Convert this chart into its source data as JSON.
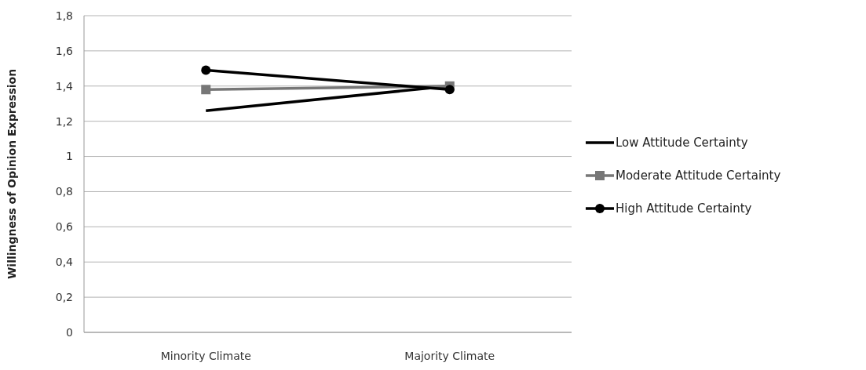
{
  "chart_data": {
    "type": "line",
    "ylabel": "Willingness of Opinion Expression",
    "categories": [
      "Minority Climate",
      "Majority Climate"
    ],
    "series": [
      {
        "name": "Low Attitude Certainty",
        "color": "#000000",
        "values": [
          1.26,
          1.4
        ],
        "marker": "none"
      },
      {
        "name": "Moderate Attitude Certainty",
        "color": "#777777",
        "values": [
          1.38,
          1.4
        ],
        "marker": "square"
      },
      {
        "name": "High Attitude Certainty",
        "color": "#000000",
        "values": [
          1.49,
          1.38
        ],
        "marker": "circle"
      }
    ],
    "ylim": [
      0,
      1.8
    ],
    "yticks": [
      0,
      {
        "value": 0.2,
        "label": "0,2"
      },
      {
        "value": 0.4,
        "label": "0,4"
      },
      {
        "value": 0.6,
        "label": "0,6"
      },
      {
        "value": 0.8,
        "label": "0,8"
      },
      1,
      {
        "value": 1.2,
        "label": "1,2"
      },
      {
        "value": 1.4,
        "label": "1,4"
      },
      {
        "value": 1.6,
        "label": "1,6"
      },
      {
        "value": 1.8,
        "label": "1,8"
      }
    ],
    "grid": "y",
    "legend": "right",
    "line_style": "solid"
  }
}
